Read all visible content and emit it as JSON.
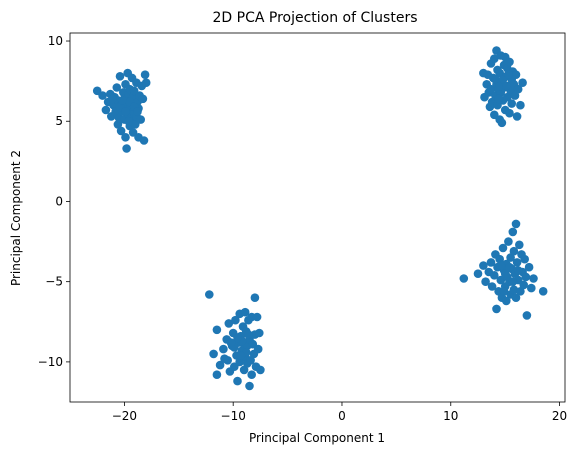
{
  "chart_data": {
    "type": "scatter",
    "title": "2D PCA Projection of Clusters",
    "xlabel": "Principal Component 1",
    "ylabel": "Principal Component 2",
    "xlim": [
      -25,
      20.5
    ],
    "ylim": [
      -12.5,
      10.5
    ],
    "xticks": [
      -20,
      -10,
      0,
      10,
      20
    ],
    "yticks": [
      -10,
      -5,
      0,
      5,
      10
    ],
    "xtick_labels": [
      "−20",
      "−10",
      "0",
      "10",
      "20"
    ],
    "ytick_labels": [
      "−10",
      "−5",
      "0",
      "5",
      "10"
    ],
    "grid": false,
    "marker_color": "#1f77b4",
    "series": [
      {
        "points": [
          [
            -22.5,
            6.9
          ],
          [
            -22.0,
            6.6
          ],
          [
            -21.7,
            5.7
          ],
          [
            -21.5,
            6.2
          ],
          [
            -21.3,
            6.7
          ],
          [
            -21.2,
            5.3
          ],
          [
            -21.0,
            6.0
          ],
          [
            -20.9,
            6.5
          ],
          [
            -20.8,
            5.6
          ],
          [
            -20.7,
            7.1
          ],
          [
            -20.6,
            4.8
          ],
          [
            -20.6,
            6.3
          ],
          [
            -20.5,
            5.2
          ],
          [
            -20.4,
            7.8
          ],
          [
            -20.3,
            6.0
          ],
          [
            -20.3,
            4.4
          ],
          [
            -20.2,
            5.6
          ],
          [
            -20.1,
            6.8
          ],
          [
            -20.0,
            5.1
          ],
          [
            -20.0,
            6.4
          ],
          [
            -19.9,
            7.3
          ],
          [
            -19.9,
            4.0
          ],
          [
            -19.8,
            5.8
          ],
          [
            -19.8,
            3.3
          ],
          [
            -19.7,
            6.1
          ],
          [
            -19.7,
            8.0
          ],
          [
            -19.6,
            5.4
          ],
          [
            -19.6,
            6.7
          ],
          [
            -19.5,
            4.7
          ],
          [
            -19.5,
            7.0
          ],
          [
            -19.4,
            5.9
          ],
          [
            -19.4,
            6.3
          ],
          [
            -19.3,
            5.0
          ],
          [
            -19.3,
            7.7
          ],
          [
            -19.2,
            6.5
          ],
          [
            -19.2,
            4.3
          ],
          [
            -19.1,
            5.5
          ],
          [
            -19.1,
            6.9
          ],
          [
            -19.0,
            6.0
          ],
          [
            -19.0,
            4.8
          ],
          [
            -18.9,
            7.4
          ],
          [
            -18.9,
            5.3
          ],
          [
            -18.8,
            6.2
          ],
          [
            -18.7,
            4.0
          ],
          [
            -18.7,
            5.8
          ],
          [
            -18.6,
            6.6
          ],
          [
            -18.5,
            5.1
          ],
          [
            -18.4,
            7.2
          ],
          [
            -18.3,
            6.4
          ],
          [
            -18.2,
            3.8
          ],
          [
            -18.1,
            7.9
          ],
          [
            -18.0,
            7.4
          ],
          [
            -21.1,
            6.4
          ],
          [
            -20.4,
            5.9
          ],
          [
            -19.9,
            5.6
          ],
          [
            -19.5,
            6.2
          ],
          [
            -19.1,
            5.9
          ],
          [
            -18.8,
            5.6
          ],
          [
            -20.2,
            6.3
          ],
          [
            -19.6,
            5.0
          ],
          [
            -12.2,
            -5.8
          ],
          [
            -11.5,
            -8.0
          ],
          [
            -11.8,
            -9.5
          ],
          [
            -11.5,
            -10.8
          ],
          [
            -11.2,
            -10.2
          ],
          [
            -10.9,
            -9.2
          ],
          [
            -10.6,
            -8.6
          ],
          [
            -10.5,
            -9.9
          ],
          [
            -10.4,
            -7.6
          ],
          [
            -10.3,
            -10.6
          ],
          [
            -10.1,
            -9.0
          ],
          [
            -10.0,
            -8.2
          ],
          [
            -9.9,
            -10.3
          ],
          [
            -9.8,
            -7.4
          ],
          [
            -9.7,
            -9.6
          ],
          [
            -9.6,
            -11.2
          ],
          [
            -9.5,
            -8.8
          ],
          [
            -9.4,
            -7.0
          ],
          [
            -9.4,
            -10.0
          ],
          [
            -9.3,
            -8.4
          ],
          [
            -9.2,
            -9.3
          ],
          [
            -9.1,
            -7.8
          ],
          [
            -9.0,
            -10.5
          ],
          [
            -9.0,
            -8.9
          ],
          [
            -8.9,
            -6.9
          ],
          [
            -8.9,
            -9.7
          ],
          [
            -8.8,
            -8.1
          ],
          [
            -8.7,
            -10.1
          ],
          [
            -8.7,
            -9.0
          ],
          [
            -8.6,
            -7.4
          ],
          [
            -8.5,
            -11.5
          ],
          [
            -8.5,
            -8.6
          ],
          [
            -8.4,
            -9.9
          ],
          [
            -8.3,
            -7.2
          ],
          [
            -8.3,
            -10.8
          ],
          [
            -8.2,
            -8.9
          ],
          [
            -8.1,
            -9.5
          ],
          [
            -8.0,
            -6.0
          ],
          [
            -8.0,
            -8.3
          ],
          [
            -7.9,
            -10.3
          ],
          [
            -7.8,
            -7.2
          ],
          [
            -7.7,
            -9.2
          ],
          [
            -7.6,
            -8.2
          ],
          [
            -7.5,
            -10.5
          ],
          [
            -10.8,
            -9.8
          ],
          [
            -9.9,
            -9.1
          ],
          [
            -9.2,
            -8.7
          ],
          [
            -8.8,
            -9.4
          ],
          [
            -8.6,
            -8.3
          ],
          [
            -9.6,
            -8.5
          ],
          [
            -10.2,
            -8.8
          ],
          [
            -9.3,
            -9.6
          ],
          [
            13.0,
            8.0
          ],
          [
            13.1,
            6.5
          ],
          [
            13.3,
            7.3
          ],
          [
            13.4,
            7.9
          ],
          [
            13.5,
            6.8
          ],
          [
            13.6,
            5.9
          ],
          [
            13.7,
            8.6
          ],
          [
            13.7,
            7.0
          ],
          [
            13.8,
            6.2
          ],
          [
            13.9,
            7.7
          ],
          [
            14.0,
            8.9
          ],
          [
            14.0,
            5.4
          ],
          [
            14.1,
            6.6
          ],
          [
            14.2,
            9.4
          ],
          [
            14.2,
            7.3
          ],
          [
            14.3,
            8.2
          ],
          [
            14.3,
            6.0
          ],
          [
            14.4,
            7.0
          ],
          [
            14.5,
            5.1
          ],
          [
            14.5,
            8.0
          ],
          [
            14.6,
            6.8
          ],
          [
            14.6,
            9.1
          ],
          [
            14.7,
            7.5
          ],
          [
            14.7,
            4.9
          ],
          [
            14.8,
            6.3
          ],
          [
            14.9,
            8.5
          ],
          [
            14.9,
            7.1
          ],
          [
            15.0,
            5.7
          ],
          [
            15.0,
            9.0
          ],
          [
            15.1,
            7.8
          ],
          [
            15.2,
            6.5
          ],
          [
            15.2,
            8.3
          ],
          [
            15.3,
            7.2
          ],
          [
            15.4,
            5.5
          ],
          [
            15.4,
            8.7
          ],
          [
            15.5,
            6.9
          ],
          [
            15.6,
            7.6
          ],
          [
            15.6,
            6.1
          ],
          [
            15.7,
            8.1
          ],
          [
            15.8,
            7.3
          ],
          [
            15.9,
            6.6
          ],
          [
            16.0,
            7.9
          ],
          [
            16.1,
            5.3
          ],
          [
            16.2,
            7.0
          ],
          [
            16.4,
            6.0
          ],
          [
            16.6,
            7.4
          ],
          [
            14.1,
            7.6
          ],
          [
            14.5,
            7.2
          ],
          [
            14.8,
            7.6
          ],
          [
            15.1,
            7.2
          ],
          [
            14.4,
            6.4
          ],
          [
            15.3,
            7.9
          ],
          [
            11.2,
            -4.8
          ],
          [
            12.5,
            -4.5
          ],
          [
            13.0,
            -4.0
          ],
          [
            13.2,
            -5.0
          ],
          [
            13.5,
            -4.4
          ],
          [
            13.7,
            -3.8
          ],
          [
            13.8,
            -5.3
          ],
          [
            14.0,
            -4.6
          ],
          [
            14.1,
            -3.3
          ],
          [
            14.2,
            -6.7
          ],
          [
            14.3,
            -4.1
          ],
          [
            14.4,
            -5.6
          ],
          [
            14.5,
            -3.6
          ],
          [
            14.6,
            -4.9
          ],
          [
            14.7,
            -6.0
          ],
          [
            14.8,
            -2.9
          ],
          [
            14.9,
            -4.3
          ],
          [
            15.0,
            -5.3
          ],
          [
            15.1,
            -3.9
          ],
          [
            15.1,
            -6.2
          ],
          [
            15.2,
            -4.7
          ],
          [
            15.3,
            -2.5
          ],
          [
            15.4,
            -5.0
          ],
          [
            15.5,
            -3.5
          ],
          [
            15.5,
            -5.8
          ],
          [
            15.6,
            -4.2
          ],
          [
            15.7,
            -1.9
          ],
          [
            15.8,
            -5.5
          ],
          [
            15.8,
            -3.1
          ],
          [
            15.9,
            -4.5
          ],
          [
            16.0,
            -1.4
          ],
          [
            16.0,
            -6.0
          ],
          [
            16.1,
            -3.8
          ],
          [
            16.2,
            -4.9
          ],
          [
            16.3,
            -2.7
          ],
          [
            16.4,
            -5.6
          ],
          [
            16.5,
            -3.3
          ],
          [
            16.6,
            -4.4
          ],
          [
            16.7,
            -5.2
          ],
          [
            16.8,
            -3.6
          ],
          [
            16.9,
            -4.7
          ],
          [
            17.0,
            -7.1
          ],
          [
            17.2,
            -4.1
          ],
          [
            17.4,
            -5.4
          ],
          [
            17.6,
            -4.8
          ],
          [
            18.5,
            -5.6
          ],
          [
            14.6,
            -4.0
          ],
          [
            15.0,
            -4.5
          ],
          [
            15.4,
            -4.1
          ],
          [
            15.7,
            -5.0
          ],
          [
            14.9,
            -5.6
          ],
          [
            16.2,
            -4.3
          ]
        ]
      }
    ]
  }
}
